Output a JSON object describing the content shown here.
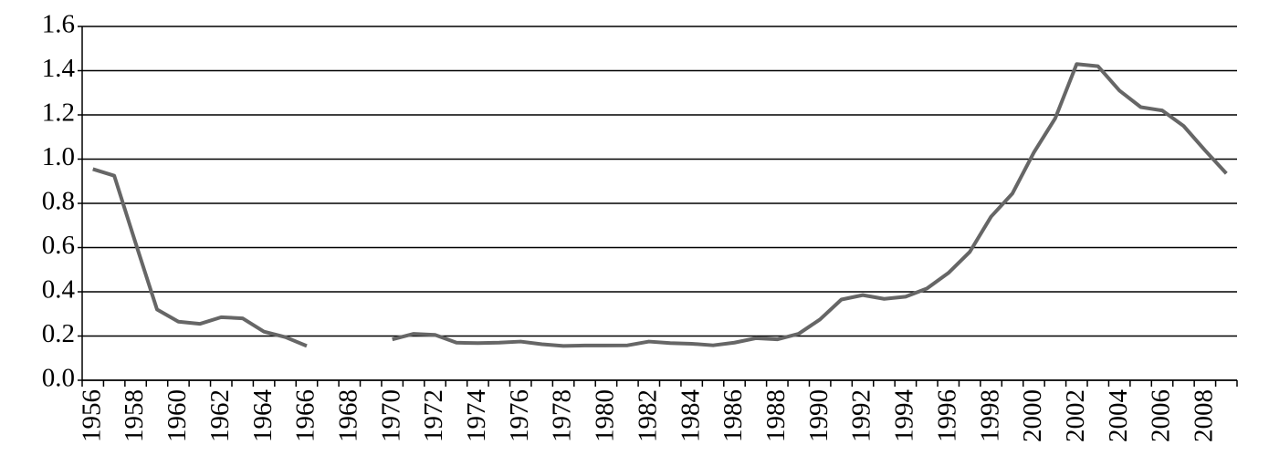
{
  "chart_data": {
    "type": "line",
    "categories": [
      "1956",
      null,
      "1958",
      null,
      "1960",
      null,
      "1962",
      null,
      "1964",
      null,
      "1966",
      null,
      "1968",
      null,
      "1970",
      null,
      "1972",
      null,
      "1974",
      null,
      "1976",
      null,
      "1978",
      null,
      "1980",
      null,
      "1982",
      null,
      "1984",
      null,
      "1986",
      null,
      "1988",
      null,
      "1990",
      null,
      "1992",
      null,
      "1994",
      null,
      "1996",
      null,
      "1998",
      null,
      "2000",
      null,
      "2002",
      null,
      "2004",
      null,
      "2006",
      null,
      "2008",
      null
    ],
    "values": [
      0.955,
      0.925,
      0.62,
      0.32,
      0.265,
      0.255,
      0.285,
      0.28,
      0.22,
      0.195,
      0.155,
      null,
      null,
      null,
      0.185,
      0.21,
      0.205,
      0.17,
      0.168,
      0.17,
      0.175,
      0.163,
      0.155,
      0.157,
      0.157,
      0.158,
      0.175,
      0.168,
      0.165,
      0.158,
      0.17,
      0.19,
      0.185,
      0.21,
      0.275,
      0.365,
      0.385,
      0.368,
      0.378,
      0.415,
      0.485,
      0.58,
      0.74,
      0.845,
      1.03,
      1.185,
      1.43,
      1.42,
      1.31,
      1.235,
      1.22,
      1.15,
      1.04,
      0.935
    ],
    "color": "#666666",
    "ylim": [
      0,
      1.6
    ],
    "yticks": [
      {
        "value": 0,
        "label": "0.0"
      },
      0.2,
      0.4,
      0.6,
      0.8,
      {
        "value": 1,
        "label": "1.0"
      },
      1.2,
      1.4,
      1.6
    ],
    "grid": true
  }
}
